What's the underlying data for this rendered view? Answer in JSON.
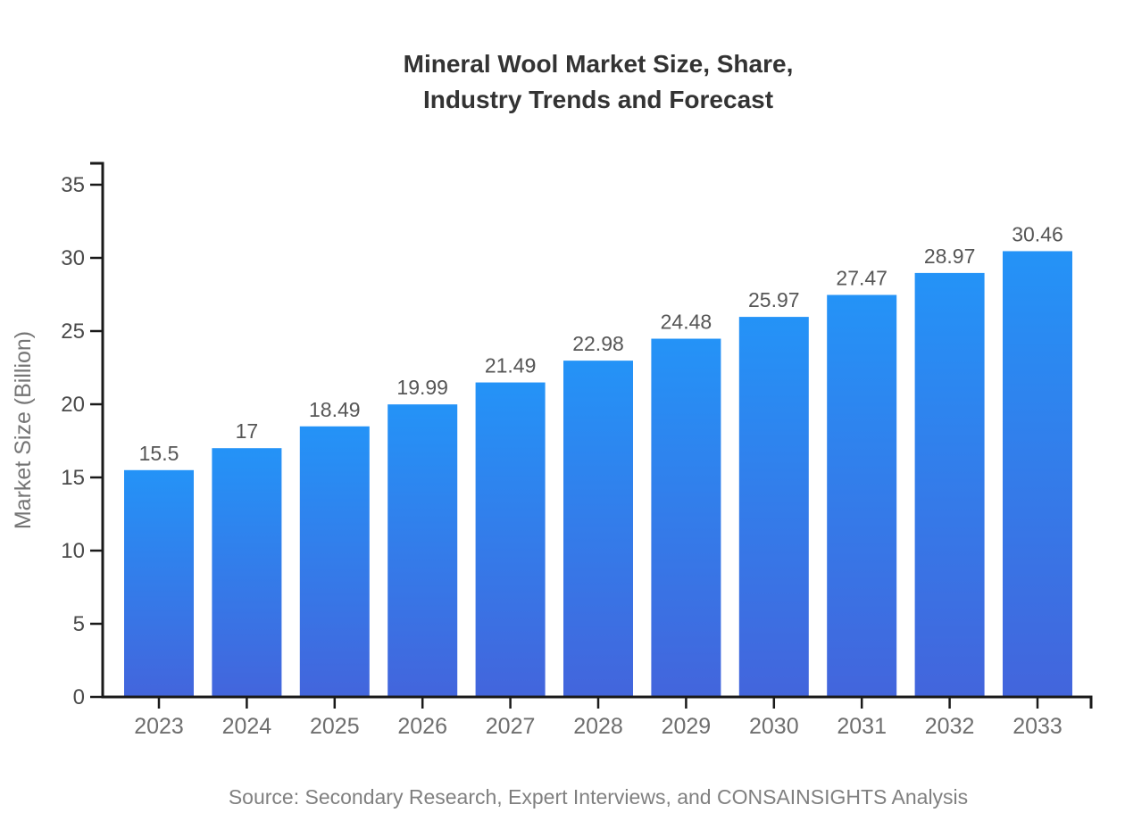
{
  "chart_data": {
    "type": "bar",
    "title": "Mineral Wool Market Size, Share, Industry Trends and Forecast",
    "title_lines": [
      "Mineral Wool Market Size, Share,",
      "Industry Trends and Forecast"
    ],
    "categories": [
      "2023",
      "2024",
      "2025",
      "2026",
      "2027",
      "2028",
      "2029",
      "2030",
      "2031",
      "2032",
      "2033"
    ],
    "values": [
      15.5,
      17,
      18.49,
      19.99,
      21.49,
      22.98,
      24.48,
      25.97,
      27.47,
      28.97,
      30.46
    ],
    "bar_labels": [
      "15.5",
      "17",
      "18.49",
      "19.99",
      "21.49",
      "22.98",
      "24.48",
      "25.97",
      "27.47",
      "28.97",
      "30.46"
    ],
    "xlabel": "",
    "ylabel": "Market Size (Billion)",
    "ylim": [
      0,
      35
    ],
    "yticks": [
      0,
      5,
      10,
      15,
      20,
      25,
      30,
      35
    ],
    "grid": false,
    "legend": "none",
    "source": "Source: Secondary Research, Expert Interviews, and CONSAINSIGHTS Analysis",
    "colors": {
      "background": "#ffffff",
      "bar_gradient_top": "#2493f7",
      "bar_gradient_bottom": "#4365dc",
      "axis": "#1a1a1a",
      "title_text": "#333333",
      "value_label_text": "#565656",
      "x_tick_text": "#6e6e6e",
      "y_tick_text": "#4a4a4a",
      "y_axis_label_text": "#757575",
      "source_text": "#808080"
    }
  }
}
